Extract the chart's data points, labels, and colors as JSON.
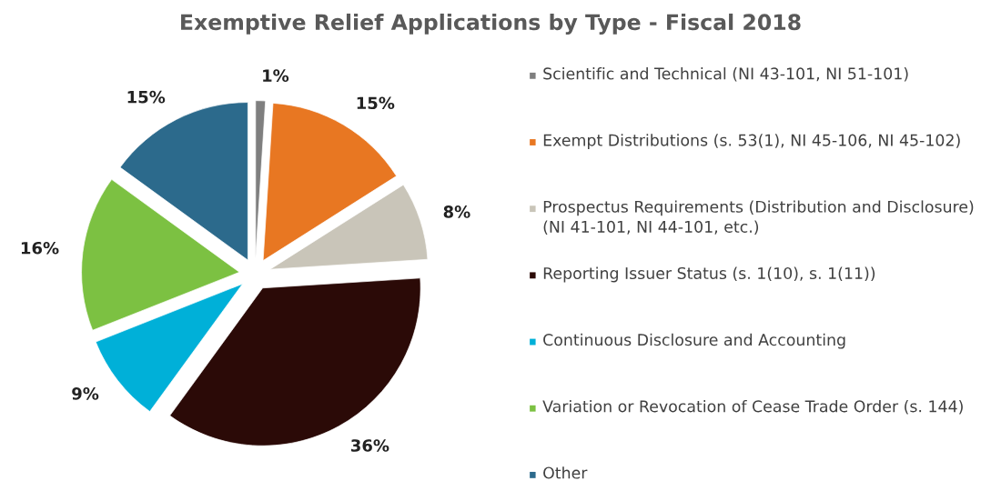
{
  "chart_data": {
    "type": "pie",
    "title": "Exemptive Relief Applications by Type - Fiscal 2018",
    "categories": [
      "Scientific and Technical (NI 43-101, NI 51-101)",
      "Exempt Distributions (s. 53(1), NI 45-106, NI 45-102)",
      "Prospectus Requirements (Distribution and Disclosure) (NI 41-101, NI 44-101, etc.)",
      "Reporting Issuer Status (s. 1(10), s. 1(11))",
      "Continuous Disclosure and Accounting",
      "Variation or Revocation of Cease Trade Order (s. 144)",
      "Other"
    ],
    "values": [
      1,
      15,
      8,
      36,
      9,
      16,
      15
    ],
    "value_labels": [
      "1%",
      "15%",
      "8%",
      "36%",
      "9%",
      "16%",
      "15%"
    ],
    "colors": [
      "#7f7f7f",
      "#e87722",
      "#c9c5b9",
      "#2b0a07",
      "#00b0d8",
      "#7cc142",
      "#2c6a8c"
    ],
    "legend": "right"
  }
}
